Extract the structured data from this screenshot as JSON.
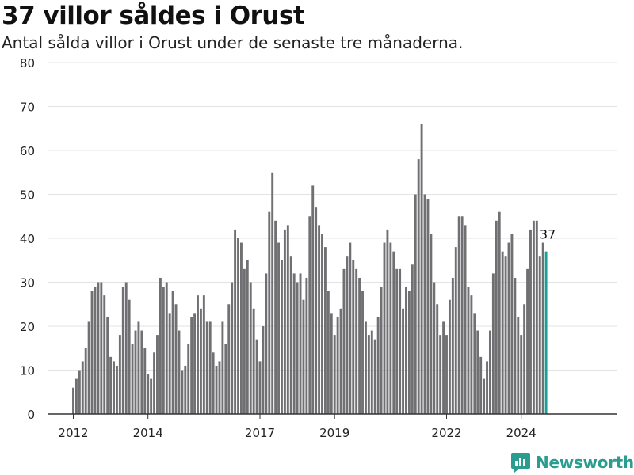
{
  "title": "37 villor såldes i Orust",
  "subtitle": "Antal sålda villor i Orust under de senaste tre månaderna.",
  "brand": {
    "name": "Newsworthy",
    "icon": "newsworthy-logo-icon"
  },
  "colors": {
    "bar": "#707073",
    "highlight": "#1b9e96",
    "grid": "#e3e3e3",
    "axis": "#333333"
  },
  "chart_data": {
    "type": "bar",
    "x_start": "2012-01",
    "ylim": [
      0,
      80
    ],
    "yticks": [
      0,
      10,
      20,
      30,
      40,
      50,
      60,
      70,
      80
    ],
    "xticks": [
      {
        "label": "2012",
        "date": "2012-01"
      },
      {
        "label": "2014",
        "date": "2014-01"
      },
      {
        "label": "2017",
        "date": "2017-01"
      },
      {
        "label": "2019",
        "date": "2019-01"
      },
      {
        "label": "2022",
        "date": "2022-01"
      },
      {
        "label": "2024",
        "date": "2024-01"
      }
    ],
    "values": [
      6,
      8,
      10,
      12,
      15,
      21,
      28,
      29,
      30,
      30,
      27,
      22,
      13,
      12,
      11,
      18,
      29,
      30,
      26,
      16,
      19,
      21,
      19,
      15,
      9,
      8,
      14,
      18,
      31,
      29,
      30,
      23,
      28,
      25,
      19,
      10,
      11,
      16,
      22,
      23,
      27,
      24,
      27,
      21,
      21,
      14,
      11,
      12,
      21,
      16,
      25,
      30,
      42,
      40,
      39,
      33,
      35,
      30,
      24,
      17,
      12,
      20,
      32,
      46,
      55,
      44,
      39,
      35,
      42,
      43,
      36,
      32,
      30,
      32,
      26,
      31,
      45,
      52,
      47,
      43,
      41,
      38,
      28,
      23,
      18,
      22,
      24,
      33,
      36,
      39,
      35,
      33,
      31,
      28,
      21,
      18,
      19,
      17,
      22,
      29,
      39,
      42,
      39,
      37,
      33,
      33,
      24,
      29,
      28,
      34,
      50,
      58,
      66,
      50,
      49,
      41,
      30,
      25,
      18,
      21,
      18,
      26,
      31,
      38,
      45,
      45,
      43,
      29,
      27,
      23,
      19,
      13,
      8,
      12,
      19,
      32,
      44,
      46,
      37,
      36,
      39,
      41,
      31,
      22,
      18,
      25,
      33,
      42,
      44,
      44,
      36,
      39,
      37
    ],
    "highlight_label": "37"
  }
}
